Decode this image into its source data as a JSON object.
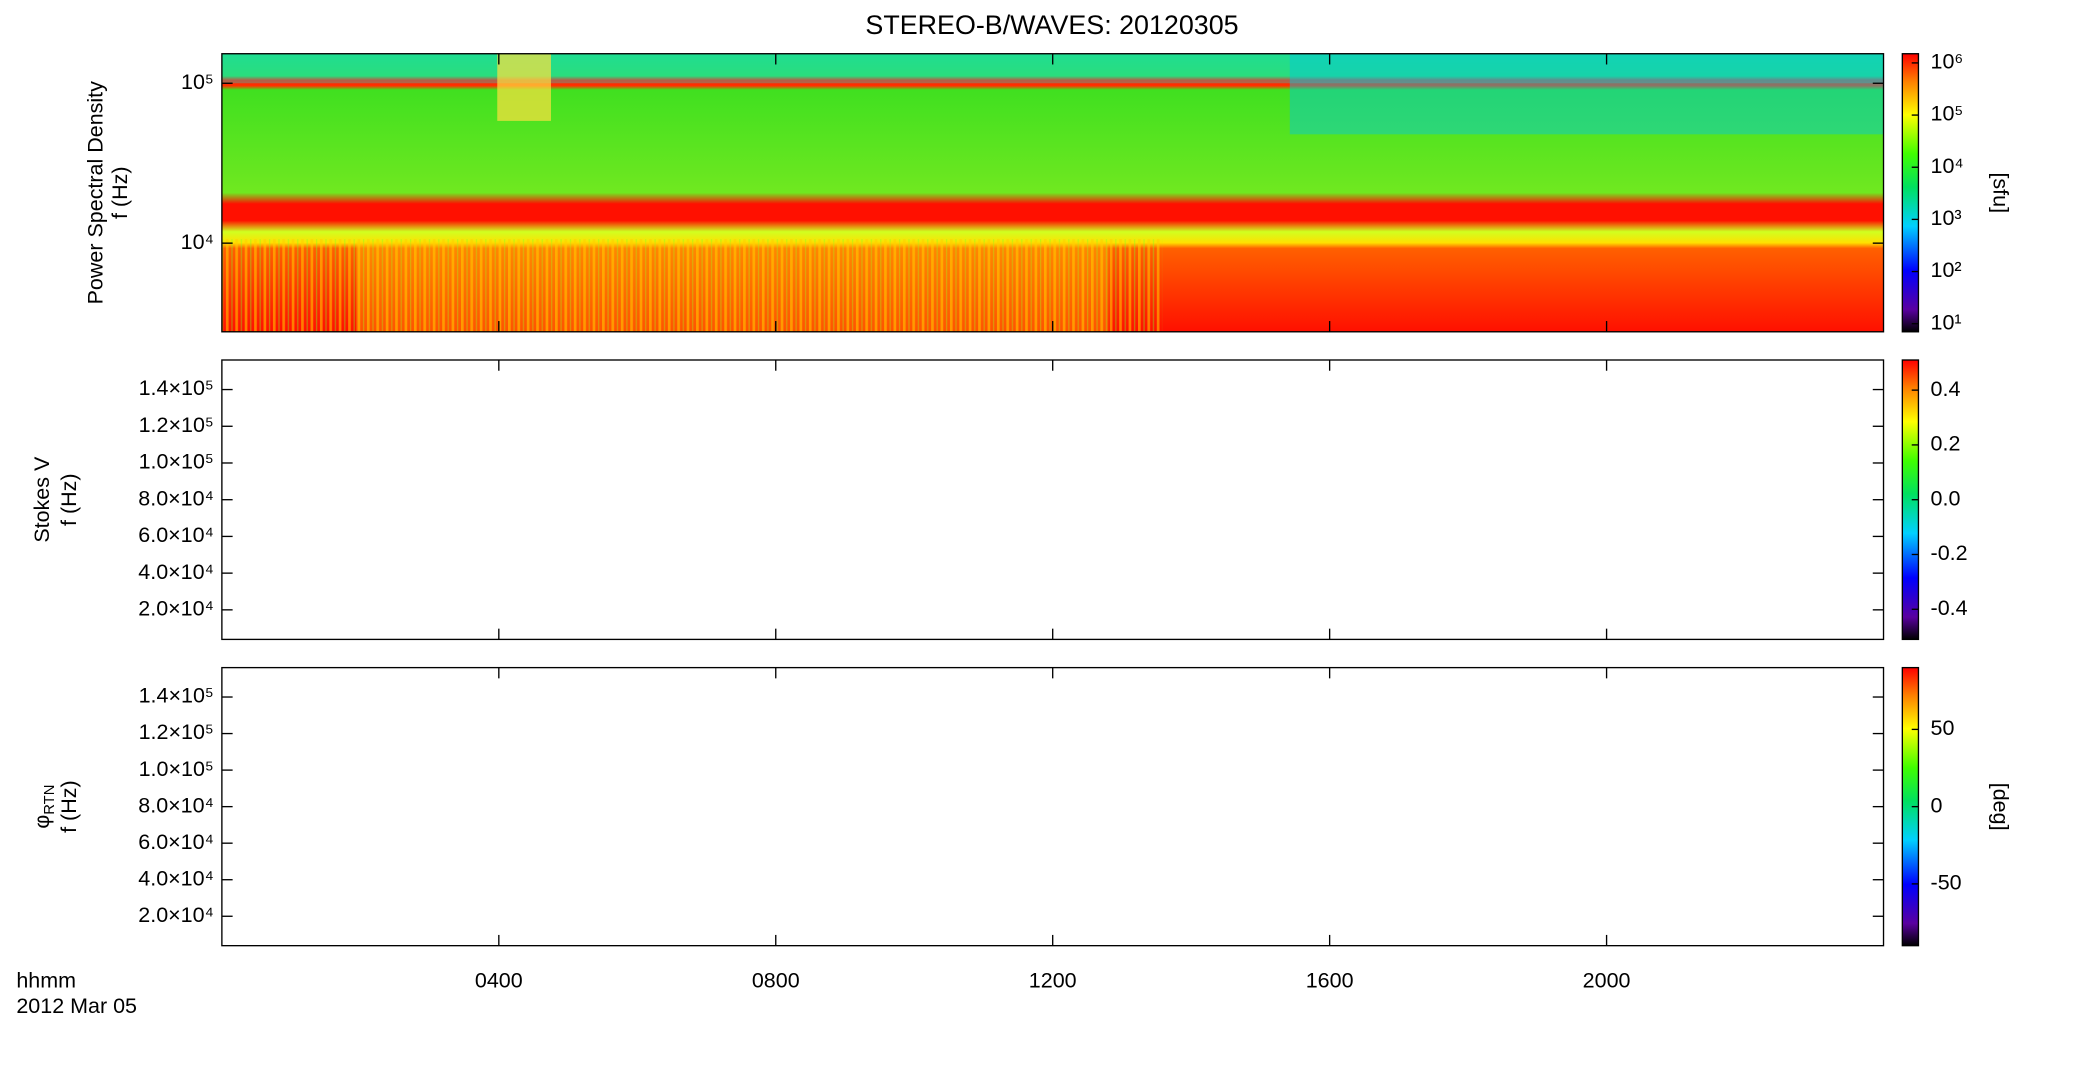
{
  "title": "STEREO-B/WAVES: 20120305",
  "x_axis": {
    "label": "hhmm",
    "date": "2012 Mar 05",
    "xlim": [
      0,
      24
    ],
    "xticks": [
      {
        "value": 4,
        "label": "0400"
      },
      {
        "value": 8,
        "label": "0800"
      },
      {
        "value": 12,
        "label": "1200"
      },
      {
        "value": 16,
        "label": "1600"
      },
      {
        "value": 20,
        "label": "2000"
      }
    ]
  },
  "chart_data": [
    {
      "type": "spectrogram",
      "ylabel": "Power Spectral Density",
      "ylabel2": "f (Hz)",
      "log_y": true,
      "ylim": [
        2790,
        153000
      ],
      "yticks": [
        {
          "value": 10000,
          "label": "10⁴"
        },
        {
          "value": 100000,
          "label": "10⁵"
        }
      ],
      "colorbar": {
        "label": "[sfu]",
        "log": true,
        "lim": [
          7,
          1500000
        ],
        "ticks": [
          {
            "value": 10,
            "label": "10¹"
          },
          {
            "value": 100,
            "label": "10²"
          },
          {
            "value": 1000,
            "label": "10³"
          },
          {
            "value": 10000,
            "label": "10⁴"
          },
          {
            "value": 100000,
            "label": "10⁵"
          },
          {
            "value": 1000000,
            "label": "10⁶"
          }
        ]
      }
    },
    {
      "type": "spectrogram",
      "ylabel": "Stokes V",
      "ylabel2": "f (Hz)",
      "log_y": false,
      "ylim": [
        3900,
        156100
      ],
      "yticks": [
        {
          "value": 20000,
          "label": "2.0×10⁴"
        },
        {
          "value": 40000,
          "label": "4.0×10⁴"
        },
        {
          "value": 60000,
          "label": "6.0×10⁴"
        },
        {
          "value": 80000,
          "label": "8.0×10⁴"
        },
        {
          "value": 100000,
          "label": "1.0×10⁵"
        },
        {
          "value": 120000,
          "label": "1.2×10⁵"
        },
        {
          "value": 140000,
          "label": "1.4×10⁵"
        }
      ],
      "colorbar": {
        "log": false,
        "lim": [
          -0.51,
          0.51
        ],
        "ticks": [
          -0.4,
          -0.2,
          {
            "value": 0,
            "label": "0.0"
          },
          0.2,
          0.4
        ]
      }
    },
    {
      "type": "spectrogram",
      "ylabel": "φ",
      "ylabel_subscript": "RTN",
      "ylabel2": "f (Hz)",
      "log_y": false,
      "ylim": [
        3900,
        156100
      ],
      "yticks": [
        {
          "value": 20000,
          "label": "2.0×10⁴"
        },
        {
          "value": 40000,
          "label": "4.0×10⁴"
        },
        {
          "value": 60000,
          "label": "6.0×10⁴"
        },
        {
          "value": 80000,
          "label": "8.0×10⁴"
        },
        {
          "value": 100000,
          "label": "1.0×10⁵"
        },
        {
          "value": 120000,
          "label": "1.2×10⁵"
        },
        {
          "value": 140000,
          "label": "1.4×10⁵"
        }
      ],
      "colorbar": {
        "label": "[deg]",
        "log": false,
        "lim": [
          -90,
          90
        ],
        "ticks": [
          -50,
          0,
          50
        ]
      }
    }
  ]
}
